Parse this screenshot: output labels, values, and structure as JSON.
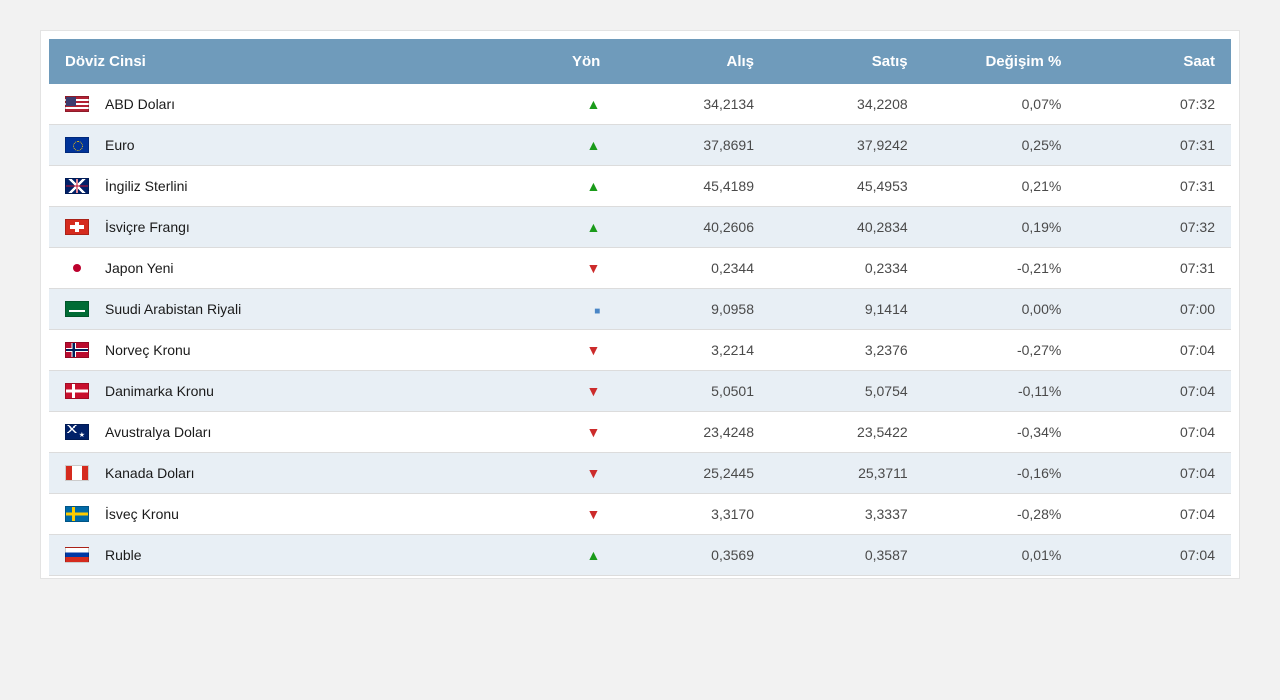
{
  "table": {
    "type": "table",
    "header_bg": "#6f9bbb",
    "header_fg": "#ffffff",
    "row_odd_bg": "#ffffff",
    "row_even_bg": "#e8eff5",
    "row_border": "#dcdcdc",
    "up_color": "#1a9b1a",
    "down_color": "#cc2b2b",
    "flat_color": "#4a86c6",
    "columns": {
      "name": "Döviz Cinsi",
      "dir": "Yön",
      "buy": "Alış",
      "sell": "Satış",
      "change": "Değişim %",
      "time": "Saat"
    },
    "rows": [
      {
        "flag": "us",
        "name": "ABD Doları",
        "dir": "up",
        "buy": "34,2134",
        "sell": "34,2208",
        "change": "0,07%",
        "time": "07:32"
      },
      {
        "flag": "eu",
        "name": "Euro",
        "dir": "up",
        "buy": "37,8691",
        "sell": "37,9242",
        "change": "0,25%",
        "time": "07:31"
      },
      {
        "flag": "gb",
        "name": "İngiliz Sterlini",
        "dir": "up",
        "buy": "45,4189",
        "sell": "45,4953",
        "change": "0,21%",
        "time": "07:31"
      },
      {
        "flag": "ch",
        "name": "İsviçre Frangı",
        "dir": "up",
        "buy": "40,2606",
        "sell": "40,2834",
        "change": "0,19%",
        "time": "07:32"
      },
      {
        "flag": "jp-trans",
        "name": "Japon Yeni",
        "dir": "down",
        "buy": "0,2344",
        "sell": "0,2334",
        "change": "-0,21%",
        "time": "07:31"
      },
      {
        "flag": "sa",
        "name": "Suudi Arabistan Riyali",
        "dir": "flat",
        "buy": "9,0958",
        "sell": "9,1414",
        "change": "0,00%",
        "time": "07:00"
      },
      {
        "flag": "no",
        "name": "Norveç Kronu",
        "dir": "down",
        "buy": "3,2214",
        "sell": "3,2376",
        "change": "-0,27%",
        "time": "07:04"
      },
      {
        "flag": "dk",
        "name": "Danimarka Kronu",
        "dir": "down",
        "buy": "5,0501",
        "sell": "5,0754",
        "change": "-0,11%",
        "time": "07:04"
      },
      {
        "flag": "au",
        "name": "Avustralya Doları",
        "dir": "down",
        "buy": "23,4248",
        "sell": "23,5422",
        "change": "-0,34%",
        "time": "07:04"
      },
      {
        "flag": "ca",
        "name": "Kanada Doları",
        "dir": "down",
        "buy": "25,2445",
        "sell": "25,3711",
        "change": "-0,16%",
        "time": "07:04"
      },
      {
        "flag": "se",
        "name": "İsveç Kronu",
        "dir": "down",
        "buy": "3,3170",
        "sell": "3,3337",
        "change": "-0,28%",
        "time": "07:04"
      },
      {
        "flag": "ru",
        "name": "Ruble",
        "dir": "up",
        "buy": "0,3569",
        "sell": "0,3587",
        "change": "0,01%",
        "time": "07:04"
      }
    ]
  }
}
